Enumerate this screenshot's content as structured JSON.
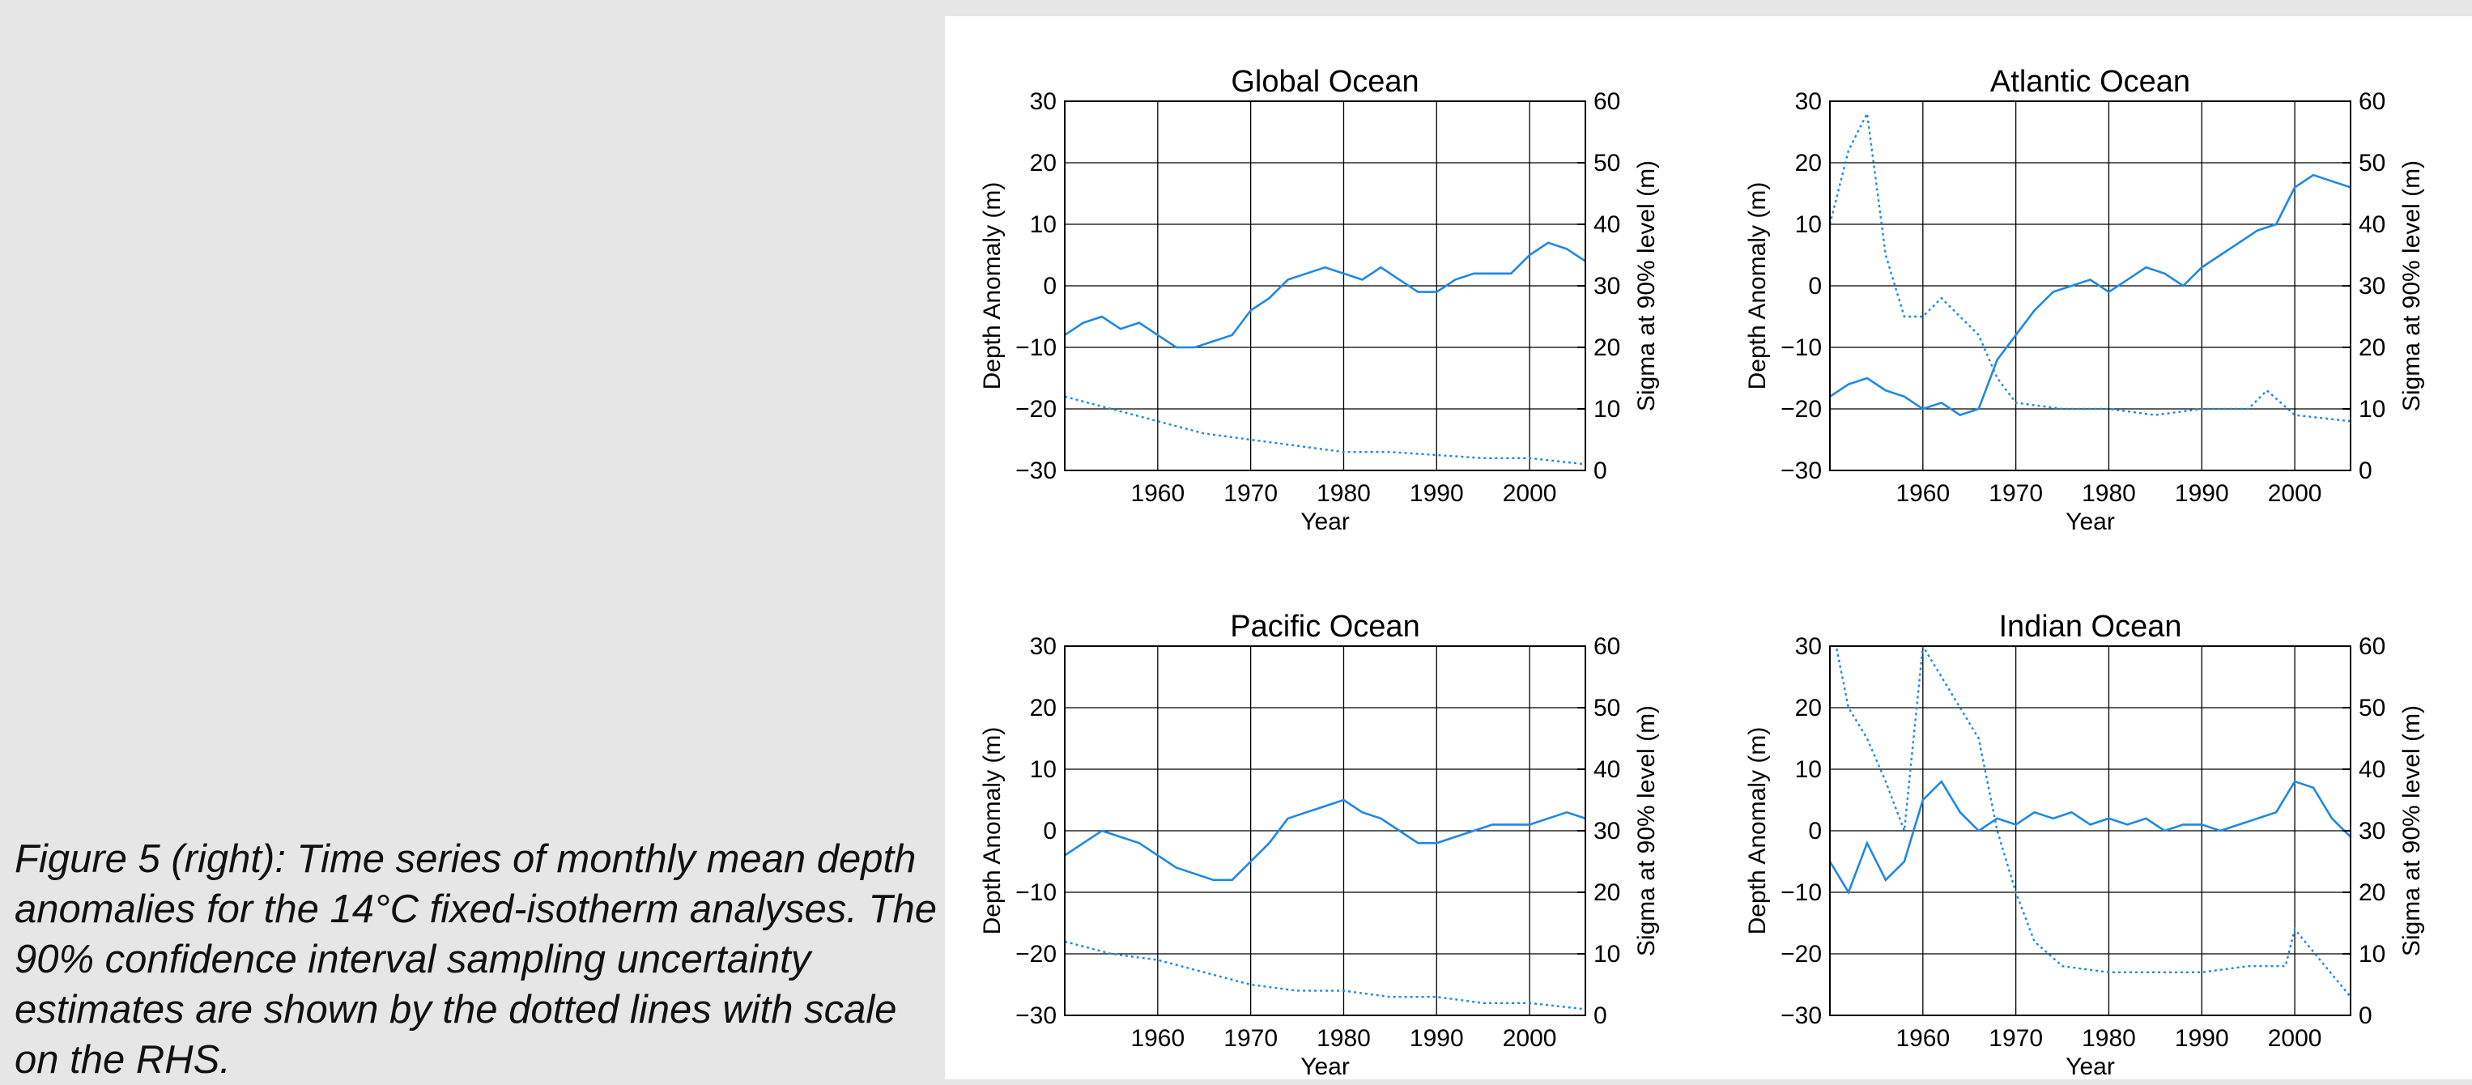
{
  "caption": "Figure 5 (right): Time series of monthly mean depth anomalies for the 14°C fixed-isotherm analyses. The 90% confidence interval sampling uncertainty estimates are shown by the dotted lines with scale on the RHS.",
  "colors": {
    "series": "#1e88e5",
    "grid": "#000000",
    "background": "#e6e6e6",
    "panel": "#ffffff"
  },
  "chart_data": [
    {
      "type": "line",
      "title": "Global Ocean",
      "xlabel": "Year",
      "ylabel": "Depth Anomaly (m)",
      "y2label": "Sigma at 90% level (m)",
      "xlim": [
        1950,
        2006
      ],
      "ylim": [
        -30,
        30
      ],
      "y2lim": [
        0,
        60
      ],
      "xticks": [
        1960,
        1970,
        1980,
        1990,
        2000
      ],
      "yticks": [
        30,
        20,
        10,
        0,
        -10,
        -20,
        -30
      ],
      "y2ticks": [
        60,
        50,
        40,
        30,
        20,
        10,
        0
      ],
      "grid": true,
      "series": [
        {
          "style": "solid",
          "axis": "left",
          "x": [
            1950,
            1952,
            1954,
            1956,
            1958,
            1960,
            1962,
            1964,
            1966,
            1968,
            1970,
            1972,
            1974,
            1976,
            1978,
            1980,
            1982,
            1984,
            1986,
            1988,
            1990,
            1992,
            1994,
            1996,
            1998,
            2000,
            2002,
            2004,
            2006
          ],
          "y": [
            -8,
            -6,
            -5,
            -7,
            -6,
            -8,
            -10,
            -10,
            -9,
            -8,
            -4,
            -2,
            1,
            2,
            3,
            2,
            1,
            3,
            1,
            -1,
            -1,
            1,
            2,
            2,
            2,
            5,
            7,
            6,
            4
          ]
        },
        {
          "style": "dotted",
          "axis": "right",
          "x": [
            1950,
            1955,
            1960,
            1965,
            1970,
            1975,
            1980,
            1985,
            1990,
            1995,
            2000,
            2006
          ],
          "y": [
            12,
            10,
            8,
            6,
            5,
            4,
            3,
            3,
            2.5,
            2,
            2,
            1
          ]
        }
      ]
    },
    {
      "type": "line",
      "title": "Atlantic Ocean",
      "xlabel": "Year",
      "ylabel": "Depth Anomaly (m)",
      "y2label": "Sigma at 90% level (m)",
      "xlim": [
        1950,
        2006
      ],
      "ylim": [
        -30,
        30
      ],
      "y2lim": [
        0,
        60
      ],
      "xticks": [
        1960,
        1970,
        1980,
        1990,
        2000
      ],
      "yticks": [
        30,
        20,
        10,
        0,
        -10,
        -20,
        -30
      ],
      "y2ticks": [
        60,
        50,
        40,
        30,
        20,
        10,
        0
      ],
      "grid": true,
      "series": [
        {
          "style": "solid",
          "axis": "left",
          "x": [
            1950,
            1952,
            1954,
            1956,
            1958,
            1960,
            1962,
            1964,
            1966,
            1968,
            1970,
            1972,
            1974,
            1976,
            1978,
            1980,
            1982,
            1984,
            1986,
            1988,
            1990,
            1992,
            1994,
            1996,
            1998,
            2000,
            2002,
            2004,
            2006
          ],
          "y": [
            -18,
            -16,
            -15,
            -17,
            -18,
            -20,
            -19,
            -21,
            -20,
            -12,
            -8,
            -4,
            -1,
            0,
            1,
            -1,
            1,
            3,
            2,
            0,
            3,
            5,
            7,
            9,
            10,
            16,
            18,
            17,
            16
          ]
        },
        {
          "style": "dotted",
          "axis": "right",
          "x": [
            1950,
            1952,
            1954,
            1956,
            1958,
            1960,
            1962,
            1964,
            1966,
            1968,
            1970,
            1975,
            1980,
            1985,
            1990,
            1995,
            1997,
            2000,
            2006
          ],
          "y": [
            40,
            52,
            58,
            35,
            25,
            25,
            28,
            25,
            22,
            15,
            11,
            10,
            10,
            9,
            10,
            10,
            13,
            9,
            8
          ]
        }
      ]
    },
    {
      "type": "line",
      "title": "Pacific Ocean",
      "xlabel": "Year",
      "ylabel": "Depth Anomaly (m)",
      "y2label": "Sigma at 90% level (m)",
      "xlim": [
        1950,
        2006
      ],
      "ylim": [
        -30,
        30
      ],
      "y2lim": [
        0,
        60
      ],
      "xticks": [
        1960,
        1970,
        1980,
        1990,
        2000
      ],
      "yticks": [
        30,
        20,
        10,
        0,
        -10,
        -20,
        -30
      ],
      "y2ticks": [
        60,
        50,
        40,
        30,
        20,
        10,
        0
      ],
      "grid": true,
      "series": [
        {
          "style": "solid",
          "axis": "left",
          "x": [
            1950,
            1952,
            1954,
            1956,
            1958,
            1960,
            1962,
            1964,
            1966,
            1968,
            1970,
            1972,
            1974,
            1976,
            1978,
            1980,
            1982,
            1984,
            1986,
            1988,
            1990,
            1992,
            1994,
            1996,
            1998,
            2000,
            2002,
            2004,
            2006
          ],
          "y": [
            -4,
            -2,
            0,
            -1,
            -2,
            -4,
            -6,
            -7,
            -8,
            -8,
            -5,
            -2,
            2,
            3,
            4,
            5,
            3,
            2,
            0,
            -2,
            -2,
            -1,
            0,
            1,
            1,
            1,
            2,
            3,
            2
          ]
        },
        {
          "style": "dotted",
          "axis": "right",
          "x": [
            1950,
            1955,
            1960,
            1965,
            1970,
            1975,
            1980,
            1985,
            1990,
            1995,
            2000,
            2006
          ],
          "y": [
            12,
            10,
            9,
            7,
            5,
            4,
            4,
            3,
            3,
            2,
            2,
            1
          ]
        }
      ]
    },
    {
      "type": "line",
      "title": "Indian Ocean",
      "xlabel": "Year",
      "ylabel": "Depth Anomaly (m)",
      "y2label": "Sigma at 90% level (m)",
      "xlim": [
        1950,
        2006
      ],
      "ylim": [
        -30,
        30
      ],
      "y2lim": [
        0,
        60
      ],
      "xticks": [
        1960,
        1970,
        1980,
        1990,
        2000
      ],
      "yticks": [
        30,
        20,
        10,
        0,
        -10,
        -20,
        -30
      ],
      "y2ticks": [
        60,
        50,
        40,
        30,
        20,
        10,
        0
      ],
      "grid": true,
      "series": [
        {
          "style": "solid",
          "axis": "left",
          "x": [
            1950,
            1952,
            1954,
            1956,
            1958,
            1960,
            1962,
            1964,
            1966,
            1968,
            1970,
            1972,
            1974,
            1976,
            1978,
            1980,
            1982,
            1984,
            1986,
            1988,
            1990,
            1992,
            1994,
            1996,
            1998,
            2000,
            2002,
            2004,
            2006
          ],
          "y": [
            -5,
            -10,
            -2,
            -8,
            -5,
            5,
            8,
            3,
            0,
            2,
            1,
            3,
            2,
            3,
            1,
            2,
            1,
            2,
            0,
            1,
            1,
            0,
            1,
            2,
            3,
            8,
            7,
            2,
            -1
          ]
        },
        {
          "style": "dotted",
          "axis": "right",
          "x": [
            1950,
            1952,
            1954,
            1956,
            1958,
            1960,
            1962,
            1964,
            1966,
            1968,
            1970,
            1972,
            1975,
            1980,
            1985,
            1990,
            1995,
            1999,
            2000,
            2006
          ],
          "y": [
            65,
            50,
            45,
            38,
            30,
            60,
            55,
            50,
            45,
            30,
            20,
            12,
            8,
            7,
            7,
            7,
            8,
            8,
            14,
            3
          ]
        }
      ]
    }
  ]
}
